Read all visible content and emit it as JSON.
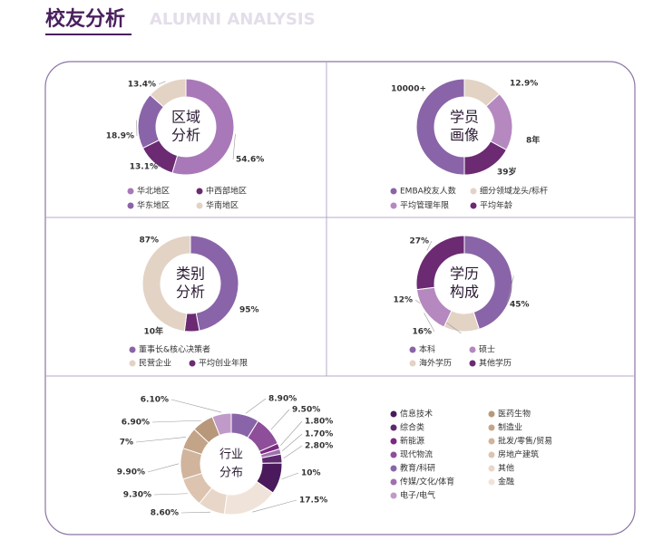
{
  "header": {
    "title": "校友分析",
    "subtitle": "ALUMNI ANALYSIS"
  },
  "chart_data": [
    {
      "type": "pie",
      "title": [
        "区域",
        "分析"
      ],
      "categories": [
        "华北地区",
        "中西部地区",
        "华东地区",
        "华南地区"
      ],
      "values": [
        54.6,
        13.1,
        18.9,
        13.4
      ],
      "value_labels": [
        "54.6%",
        "13.1%",
        "18.9%",
        "13.4%"
      ],
      "colors": [
        "#a978b8",
        "#6b2a72",
        "#8a64a8",
        "#e3d3c5"
      ]
    },
    {
      "type": "pie",
      "title": [
        "学历",
        "构成"
      ],
      "categories": [
        "本科",
        "硕士",
        "海外学历",
        "其他学历"
      ],
      "values": [
        45,
        16,
        12,
        27
      ],
      "value_labels": [
        "45%",
        "16%",
        "12%",
        "27%"
      ],
      "colors": [
        "#8a64a8",
        "#b588c0",
        "#e3d3c5",
        "#6b2a72"
      ]
    },
    {
      "type": "pie",
      "title": [
        "行业",
        "分布"
      ],
      "categories": [
        "信息技术",
        "医药生物",
        "综合类",
        "制造业",
        "新能源",
        "批发/零售/贸易",
        "现代物流",
        "房地产建筑",
        "教育/科研",
        "其他",
        "传媒/文化/体育",
        "金融",
        "电子/电气"
      ],
      "values": [
        10,
        6.9,
        2.8,
        7,
        1.8,
        9.9,
        9.5,
        9.3,
        8.9,
        8.6,
        1.7,
        17.5,
        6.1
      ],
      "value_labels": [
        "10%",
        "6.90%",
        "2.80%",
        "7%",
        "1.80%",
        "9.90%",
        "9.50%",
        "9.30%",
        "8.90%",
        "8.60%",
        "1.70%",
        "17.5%",
        "6.10%"
      ],
      "colors": [
        "#4a1a5c",
        "#b8987a",
        "#5e2a6e",
        "#c4a488",
        "#7a2a80",
        "#d0b49c",
        "#8e4e9a",
        "#dcc4b0",
        "#8a64a8",
        "#e8d6c8",
        "#a070b0",
        "#f0e4da",
        "#c09ac8"
      ]
    }
  ],
  "profile": {
    "title": [
      "学员",
      "画像"
    ],
    "labels": [
      "10000+",
      "12.9%",
      "8年",
      "39岁"
    ],
    "legend": [
      "EMBA校友人数",
      "细分领域龙头/标杆",
      "平均管理年限",
      "平均年龄"
    ]
  },
  "category": {
    "title": [
      "类别",
      "分析"
    ],
    "labels": [
      "87%",
      "95%",
      "10年"
    ],
    "legend": [
      "董事长&核心决策者",
      "民营企业",
      "平均创业年限"
    ]
  }
}
